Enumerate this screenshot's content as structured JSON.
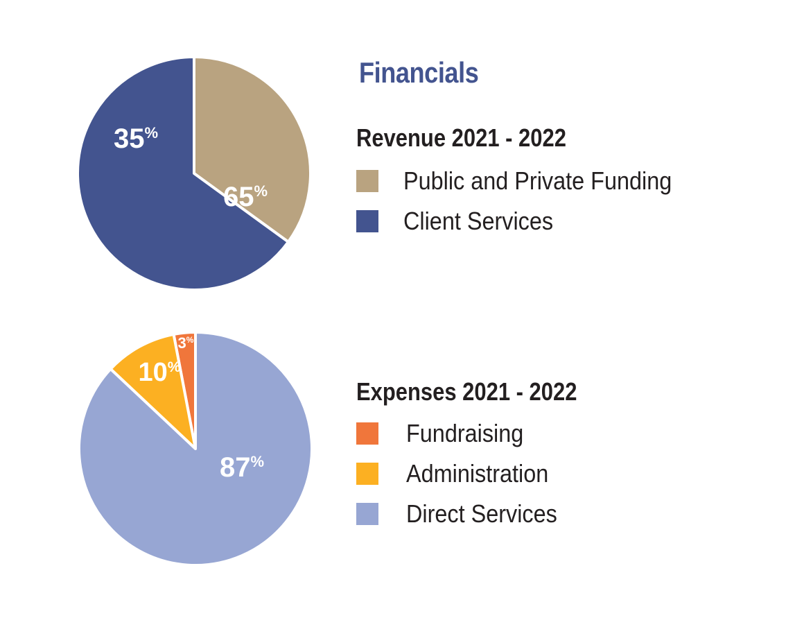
{
  "page_title": "Financials",
  "chart_data": [
    {
      "type": "pie",
      "title": "Revenue 2021 - 2022",
      "categories": [
        "Public and Private Funding",
        "Client Services"
      ],
      "values": [
        35,
        65
      ],
      "value_labels": [
        "35",
        "65"
      ],
      "unit": "%",
      "colors": [
        "#b9a380",
        "#43548f"
      ],
      "legend_placement": "right"
    },
    {
      "type": "pie",
      "title": "Expenses 2021 - 2022",
      "categories": [
        "Fundraising",
        "Administration",
        "Direct Services"
      ],
      "values": [
        3,
        10,
        87
      ],
      "value_labels": [
        "3",
        "10",
        "87"
      ],
      "unit": "%",
      "colors": [
        "#f0763b",
        "#fcb022",
        "#97a6d3"
      ],
      "legend_placement": "right"
    }
  ]
}
